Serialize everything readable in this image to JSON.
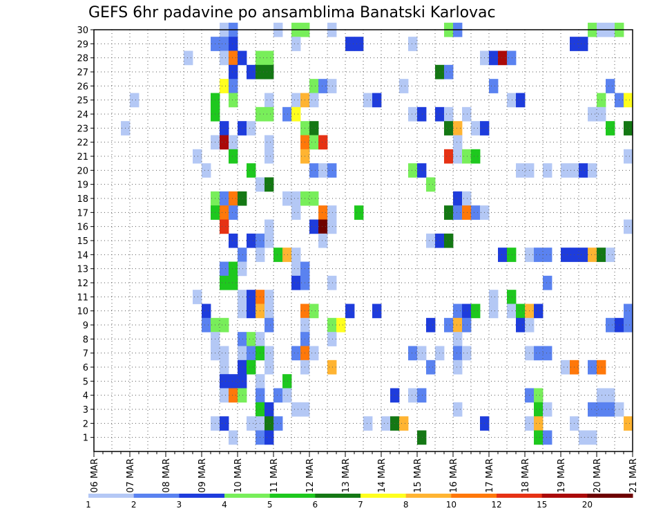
{
  "chart_data": {
    "type": "heatmap",
    "title": "GEFS 6hr padavine po ansamblima Banatski Karlovac",
    "x_tick_labels": [
      "06 MAR",
      "07 MAR",
      "08 MAR",
      "09 MAR",
      "10 MAR",
      "11 MAR",
      "12 MAR",
      "13 MAR",
      "14 MAR",
      "15 MAR",
      "16 MAR",
      "17 MAR",
      "18 MAR",
      "19 MAR",
      "20 MAR",
      "21 MAR"
    ],
    "y_tick_labels": [
      "1",
      "2",
      "3",
      "4",
      "5",
      "6",
      "7",
      "8",
      "9",
      "10",
      "11",
      "12",
      "13",
      "14",
      "15",
      "16",
      "17",
      "18",
      "19",
      "20",
      "21",
      "22",
      "23",
      "24",
      "25",
      "26",
      "27",
      "28",
      "29",
      "30"
    ],
    "x_range_steps": [
      0,
      60
    ],
    "steps_per_day": 4,
    "y_range": [
      0,
      30
    ],
    "grid": true,
    "legend": {
      "placement": "bottom",
      "labels": [
        "1",
        "2",
        "3",
        "4",
        "5",
        "6",
        "7",
        "8",
        "10",
        "12",
        "15",
        "20"
      ],
      "colors": [
        "#b4c8f5",
        "#5a82f0",
        "#1e3cdc",
        "#78ee5a",
        "#1ec81e",
        "#147814",
        "#ffff1e",
        "#ffb432",
        "#ff780a",
        "#e63214",
        "#aa0a0a",
        "#6e0000"
      ]
    },
    "cells": [
      [
        30,
        14.5,
        1
      ],
      [
        30,
        15.5,
        2
      ],
      [
        30,
        20.5,
        1
      ],
      [
        30,
        22.5,
        4
      ],
      [
        30,
        23.5,
        4
      ],
      [
        30,
        26.5,
        1
      ],
      [
        30,
        39.5,
        4
      ],
      [
        30,
        40.5,
        2
      ],
      [
        30,
        55.5,
        4
      ],
      [
        30,
        56.5,
        1
      ],
      [
        30,
        57.5,
        1
      ],
      [
        30,
        58.5,
        4
      ],
      [
        29,
        13.5,
        2
      ],
      [
        29,
        14.5,
        2
      ],
      [
        29,
        15.5,
        3
      ],
      [
        29,
        22.5,
        1
      ],
      [
        29,
        28.5,
        3
      ],
      [
        29,
        29.5,
        3
      ],
      [
        29,
        35.5,
        1
      ],
      [
        29,
        53.5,
        3
      ],
      [
        29,
        54.5,
        3
      ],
      [
        28,
        10.5,
        1
      ],
      [
        28,
        14.5,
        1
      ],
      [
        28,
        15.5,
        10
      ],
      [
        28,
        16.5,
        3
      ],
      [
        28,
        18.5,
        4
      ],
      [
        28,
        19.5,
        4
      ],
      [
        28,
        43.5,
        1
      ],
      [
        28,
        44.5,
        3
      ],
      [
        28,
        45.5,
        15
      ],
      [
        28,
        46.5,
        2
      ],
      [
        27,
        15.5,
        3
      ],
      [
        27,
        17.5,
        3
      ],
      [
        27,
        18.5,
        6
      ],
      [
        27,
        19.5,
        6
      ],
      [
        27,
        38.5,
        6
      ],
      [
        27,
        39.5,
        2
      ],
      [
        26,
        14.5,
        7
      ],
      [
        26,
        15.5,
        2
      ],
      [
        26,
        24.5,
        4
      ],
      [
        26,
        25.5,
        2
      ],
      [
        26,
        26.5,
        1
      ],
      [
        26,
        34.5,
        1
      ],
      [
        26,
        44.5,
        2
      ],
      [
        26,
        57.5,
        2
      ],
      [
        25,
        4.5,
        1
      ],
      [
        25,
        13.5,
        5
      ],
      [
        25,
        15.5,
        4
      ],
      [
        25,
        19.5,
        1
      ],
      [
        25,
        22.5,
        1
      ],
      [
        25,
        23.5,
        8
      ],
      [
        25,
        24.5,
        1
      ],
      [
        25,
        30.5,
        1
      ],
      [
        25,
        31.5,
        3
      ],
      [
        25,
        46.5,
        1
      ],
      [
        25,
        47.5,
        3
      ],
      [
        25,
        56.5,
        4
      ],
      [
        25,
        58.5,
        2
      ],
      [
        25,
        59.5,
        7
      ],
      [
        24,
        13.5,
        5
      ],
      [
        24,
        18.5,
        4
      ],
      [
        24,
        19.5,
        4
      ],
      [
        24,
        21.5,
        2
      ],
      [
        24,
        22.5,
        7
      ],
      [
        24,
        35.5,
        1
      ],
      [
        24,
        36.5,
        3
      ],
      [
        24,
        38.5,
        3
      ],
      [
        24,
        39.5,
        1
      ],
      [
        24,
        41.5,
        1
      ],
      [
        24,
        55.5,
        1
      ],
      [
        24,
        56.5,
        1
      ],
      [
        23,
        3.5,
        1
      ],
      [
        23,
        14.5,
        3
      ],
      [
        23,
        16.5,
        3
      ],
      [
        23,
        17.5,
        1
      ],
      [
        23,
        23.5,
        4
      ],
      [
        23,
        24.5,
        6
      ],
      [
        23,
        39.5,
        6
      ],
      [
        23,
        40.5,
        8
      ],
      [
        23,
        42.5,
        1
      ],
      [
        23,
        43.5,
        3
      ],
      [
        23,
        57.5,
        5
      ],
      [
        23,
        59.5,
        6
      ],
      [
        22,
        13.5,
        1
      ],
      [
        22,
        14.5,
        15
      ],
      [
        22,
        15.5,
        1
      ],
      [
        22,
        19.5,
        1
      ],
      [
        22,
        23.5,
        10
      ],
      [
        22,
        24.5,
        4
      ],
      [
        22,
        25.5,
        12
      ],
      [
        22,
        40.5,
        1
      ],
      [
        21,
        11.5,
        1
      ],
      [
        21,
        15.5,
        5
      ],
      [
        21,
        19.5,
        1
      ],
      [
        21,
        23.5,
        8
      ],
      [
        21,
        39.5,
        12
      ],
      [
        21,
        40.5,
        1
      ],
      [
        21,
        41.5,
        4
      ],
      [
        21,
        42.5,
        5
      ],
      [
        21,
        59.5,
        1
      ],
      [
        20,
        12.5,
        1
      ],
      [
        20,
        17.5,
        5
      ],
      [
        20,
        24.5,
        2
      ],
      [
        20,
        25.5,
        1
      ],
      [
        20,
        26.5,
        2
      ],
      [
        20,
        35.5,
        4
      ],
      [
        20,
        36.5,
        3
      ],
      [
        20,
        47.5,
        1
      ],
      [
        20,
        48.5,
        1
      ],
      [
        20,
        50.5,
        1
      ],
      [
        20,
        52.5,
        1
      ],
      [
        20,
        53.5,
        1
      ],
      [
        20,
        54.5,
        3
      ],
      [
        20,
        55.5,
        1
      ],
      [
        19,
        18.5,
        1
      ],
      [
        19,
        19.5,
        6
      ],
      [
        19,
        37.5,
        4
      ],
      [
        18,
        13.5,
        4
      ],
      [
        18,
        14.5,
        2
      ],
      [
        18,
        15.5,
        10
      ],
      [
        18,
        16.5,
        6
      ],
      [
        18,
        21.5,
        1
      ],
      [
        18,
        22.5,
        1
      ],
      [
        18,
        23.5,
        4
      ],
      [
        18,
        24.5,
        4
      ],
      [
        18,
        40.5,
        3
      ],
      [
        18,
        41.5,
        1
      ],
      [
        17,
        13.5,
        5
      ],
      [
        17,
        14.5,
        10
      ],
      [
        17,
        15.5,
        2
      ],
      [
        17,
        22.5,
        1
      ],
      [
        17,
        25.5,
        10
      ],
      [
        17,
        26.5,
        1
      ],
      [
        17,
        29.5,
        5
      ],
      [
        17,
        39.5,
        6
      ],
      [
        17,
        40.5,
        2
      ],
      [
        17,
        41.5,
        10
      ],
      [
        17,
        42.5,
        2
      ],
      [
        17,
        43.5,
        1
      ],
      [
        16,
        14.5,
        12
      ],
      [
        16,
        19.5,
        1
      ],
      [
        16,
        24.5,
        3
      ],
      [
        16,
        25.5,
        20
      ],
      [
        16,
        26.5,
        1
      ],
      [
        16,
        59.5,
        1
      ],
      [
        15,
        15.5,
        3
      ],
      [
        15,
        17.5,
        3
      ],
      [
        15,
        18.5,
        2
      ],
      [
        15,
        19.5,
        1
      ],
      [
        15,
        25.5,
        1
      ],
      [
        15,
        37.5,
        1
      ],
      [
        15,
        38.5,
        3
      ],
      [
        15,
        39.5,
        6
      ],
      [
        14,
        16.5,
        2
      ],
      [
        14,
        18.5,
        1
      ],
      [
        14,
        20.5,
        5
      ],
      [
        14,
        21.5,
        8
      ],
      [
        14,
        22.5,
        1
      ],
      [
        14,
        45.5,
        3
      ],
      [
        14,
        46.5,
        5
      ],
      [
        14,
        48.5,
        1
      ],
      [
        14,
        49.5,
        2
      ],
      [
        14,
        50.5,
        2
      ],
      [
        14,
        52.5,
        3
      ],
      [
        14,
        53.5,
        3
      ],
      [
        14,
        54.5,
        3
      ],
      [
        14,
        55.5,
        8
      ],
      [
        14,
        56.5,
        6
      ],
      [
        14,
        57.5,
        1
      ],
      [
        13,
        14.5,
        2
      ],
      [
        13,
        15.5,
        5
      ],
      [
        13,
        16.5,
        1
      ],
      [
        13,
        22.5,
        1
      ],
      [
        13,
        23.5,
        2
      ],
      [
        12,
        14.5,
        5
      ],
      [
        12,
        15.5,
        5
      ],
      [
        12,
        22.5,
        3
      ],
      [
        12,
        23.5,
        2
      ],
      [
        12,
        26.5,
        1
      ],
      [
        12,
        50.5,
        2
      ],
      [
        11,
        11.5,
        1
      ],
      [
        11,
        16.5,
        1
      ],
      [
        11,
        17.5,
        3
      ],
      [
        11,
        18.5,
        10
      ],
      [
        11,
        19.5,
        1
      ],
      [
        11,
        44.5,
        1
      ],
      [
        11,
        46.5,
        5
      ],
      [
        10,
        12.5,
        3
      ],
      [
        10,
        16.5,
        1
      ],
      [
        10,
        17.5,
        3
      ],
      [
        10,
        18.5,
        8
      ],
      [
        10,
        19.5,
        1
      ],
      [
        10,
        23.5,
        10
      ],
      [
        10,
        24.5,
        4
      ],
      [
        10,
        28.5,
        3
      ],
      [
        10,
        31.5,
        3
      ],
      [
        10,
        40.5,
        2
      ],
      [
        10,
        41.5,
        3
      ],
      [
        10,
        42.5,
        5
      ],
      [
        10,
        44.5,
        1
      ],
      [
        10,
        46.5,
        1
      ],
      [
        10,
        47.5,
        5
      ],
      [
        10,
        48.5,
        8
      ],
      [
        10,
        49.5,
        3
      ],
      [
        10,
        59.5,
        2
      ],
      [
        9,
        12.5,
        2
      ],
      [
        9,
        13.5,
        4
      ],
      [
        9,
        14.5,
        4
      ],
      [
        9,
        19.5,
        2
      ],
      [
        9,
        23.5,
        1
      ],
      [
        9,
        26.5,
        4
      ],
      [
        9,
        27.5,
        7
      ],
      [
        9,
        37.5,
        3
      ],
      [
        9,
        39.5,
        2
      ],
      [
        9,
        40.5,
        8
      ],
      [
        9,
        41.5,
        2
      ],
      [
        9,
        47.5,
        3
      ],
      [
        9,
        48.5,
        1
      ],
      [
        9,
        57.5,
        2
      ],
      [
        9,
        58.5,
        3
      ],
      [
        9,
        59.5,
        2
      ],
      [
        8,
        13.5,
        1
      ],
      [
        8,
        16.5,
        2
      ],
      [
        8,
        17.5,
        4
      ],
      [
        8,
        18.5,
        1
      ],
      [
        8,
        23.5,
        2
      ],
      [
        8,
        26.5,
        1
      ],
      [
        8,
        40.5,
        1
      ],
      [
        7,
        13.5,
        1
      ],
      [
        7,
        14.5,
        1
      ],
      [
        7,
        16.5,
        1
      ],
      [
        7,
        17.5,
        2
      ],
      [
        7,
        18.5,
        5
      ],
      [
        7,
        19.5,
        1
      ],
      [
        7,
        22.5,
        2
      ],
      [
        7,
        23.5,
        10
      ],
      [
        7,
        24.5,
        1
      ],
      [
        7,
        35.5,
        2
      ],
      [
        7,
        36.5,
        1
      ],
      [
        7,
        38.5,
        1
      ],
      [
        7,
        40.5,
        2
      ],
      [
        7,
        41.5,
        1
      ],
      [
        7,
        48.5,
        1
      ],
      [
        7,
        49.5,
        2
      ],
      [
        7,
        50.5,
        2
      ],
      [
        6,
        14.5,
        1
      ],
      [
        6,
        16.5,
        3
      ],
      [
        6,
        17.5,
        5
      ],
      [
        6,
        19.5,
        1
      ],
      [
        6,
        23.5,
        1
      ],
      [
        6,
        26.5,
        8
      ],
      [
        6,
        37.5,
        2
      ],
      [
        6,
        40.5,
        1
      ],
      [
        6,
        52.5,
        1
      ],
      [
        6,
        53.5,
        10
      ],
      [
        6,
        55.5,
        2
      ],
      [
        6,
        56.5,
        10
      ],
      [
        5,
        14.5,
        3
      ],
      [
        5,
        15.5,
        3
      ],
      [
        5,
        16.5,
        3
      ],
      [
        5,
        18.5,
        1
      ],
      [
        5,
        21.5,
        5
      ],
      [
        4,
        14.5,
        1
      ],
      [
        4,
        15.5,
        10
      ],
      [
        4,
        16.5,
        4
      ],
      [
        4,
        18.5,
        2
      ],
      [
        4,
        20.5,
        2
      ],
      [
        4,
        21.5,
        1
      ],
      [
        4,
        33.5,
        3
      ],
      [
        4,
        35.5,
        1
      ],
      [
        4,
        36.5,
        2
      ],
      [
        4,
        48.5,
        2
      ],
      [
        4,
        49.5,
        4
      ],
      [
        4,
        56.5,
        1
      ],
      [
        4,
        57.5,
        1
      ],
      [
        3,
        18.5,
        5
      ],
      [
        3,
        19.5,
        3
      ],
      [
        3,
        22.5,
        1
      ],
      [
        3,
        23.5,
        1
      ],
      [
        3,
        40.5,
        1
      ],
      [
        3,
        49.5,
        5
      ],
      [
        3,
        50.5,
        1
      ],
      [
        3,
        55.5,
        2
      ],
      [
        3,
        56.5,
        2
      ],
      [
        3,
        57.5,
        2
      ],
      [
        3,
        58.5,
        1
      ],
      [
        2,
        13.5,
        1
      ],
      [
        2,
        14.5,
        3
      ],
      [
        2,
        17.5,
        1
      ],
      [
        2,
        18.5,
        1
      ],
      [
        2,
        19.5,
        6
      ],
      [
        2,
        20.5,
        2
      ],
      [
        2,
        30.5,
        1
      ],
      [
        2,
        32.5,
        1
      ],
      [
        2,
        33.5,
        6
      ],
      [
        2,
        34.5,
        8
      ],
      [
        2,
        43.5,
        3
      ],
      [
        2,
        48.5,
        1
      ],
      [
        2,
        49.5,
        8
      ],
      [
        2,
        53.5,
        1
      ],
      [
        2,
        59.5,
        8
      ],
      [
        1,
        15.5,
        1
      ],
      [
        1,
        18.5,
        2
      ],
      [
        1,
        19.5,
        3
      ],
      [
        1,
        36.5,
        6
      ],
      [
        1,
        49.5,
        5
      ],
      [
        1,
        50.5,
        2
      ],
      [
        1,
        54.5,
        1
      ],
      [
        1,
        55.5,
        1
      ]
    ]
  }
}
